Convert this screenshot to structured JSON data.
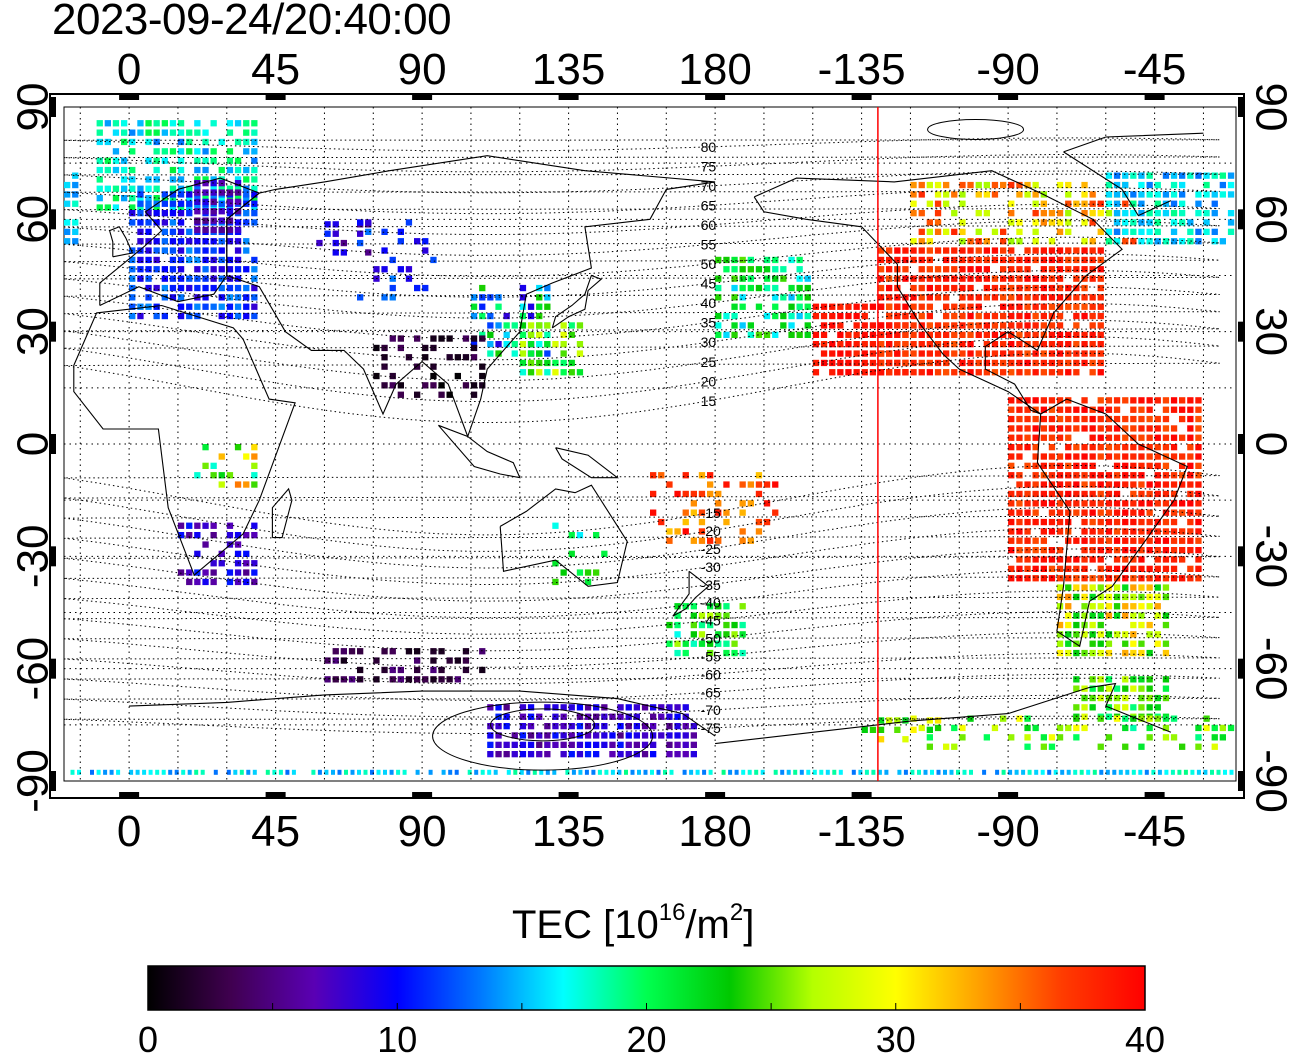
{
  "header": {
    "timestamp": "2023-09-24/20:40:00"
  },
  "map": {
    "projection": "equirectangular",
    "lon_start": -20,
    "lon_span": 360,
    "lat_range": [
      -90,
      90
    ],
    "top_lon_labels": [
      "0",
      "45",
      "90",
      "135",
      "180",
      "-135",
      "-90",
      "-45"
    ],
    "bottom_lon_labels": [
      "0",
      "45",
      "90",
      "135",
      "180",
      "-135",
      "-90",
      "-45"
    ],
    "left_lat_labels": [
      "90",
      "60",
      "30",
      "0",
      "-30",
      "-60",
      "-90"
    ],
    "right_lat_labels": [
      "90",
      "60",
      "30",
      "0",
      "-30",
      "-60",
      "-90"
    ],
    "lat_ticks": [
      90,
      60,
      30,
      0,
      -30,
      -60,
      -90
    ],
    "lon_ticks": [
      0,
      45,
      90,
      135,
      180,
      225,
      270,
      315
    ],
    "grid": "dotted",
    "terminator_lon": -130,
    "terminator_color": "#ff0000",
    "magnetic_lat_labels": [
      "80",
      "75",
      "70",
      "65",
      "60",
      "55",
      "50",
      "45",
      "40",
      "35",
      "30",
      "25",
      "20",
      "15",
      "-15",
      "-20",
      "-25",
      "-30",
      "-35",
      "-40",
      "-45",
      "-50",
      "-55",
      "-60",
      "-65",
      "-70",
      "-75"
    ]
  },
  "colorbar": {
    "title": "TEC  [10",
    "title_exp": "16",
    "title_unit": "/m",
    "title_unit_exp": "2",
    "title_close": "]",
    "min": 0,
    "max": 40,
    "tick_labels": [
      "0",
      "10",
      "20",
      "30",
      "40"
    ],
    "colors": [
      "#000000",
      "#400050",
      "#5a00b4",
      "#0000ff",
      "#0078ff",
      "#00ffff",
      "#00ff50",
      "#00c800",
      "#b4ff00",
      "#ffff00",
      "#ffa000",
      "#ff3c00",
      "#ff0000"
    ]
  }
}
